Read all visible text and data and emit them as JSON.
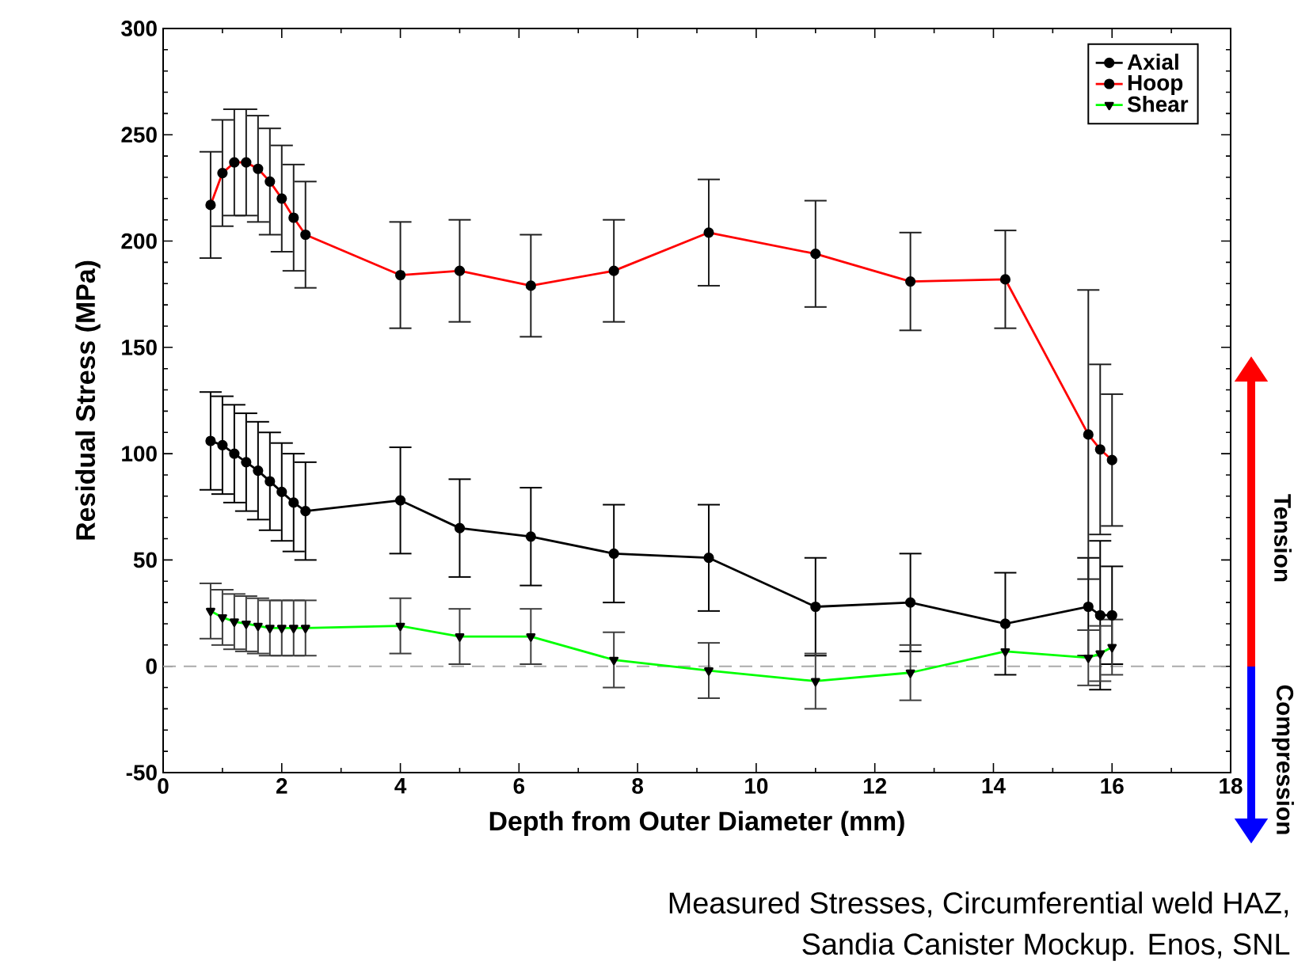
{
  "chart_data": {
    "type": "line",
    "xlabel": "Depth from Outer Diameter (mm)",
    "ylabel": "Residual Stress (MPa)",
    "xlim": [
      0,
      18
    ],
    "xticks": [
      0,
      2,
      4,
      6,
      8,
      10,
      12,
      14,
      16,
      18
    ],
    "ylim": [
      -50,
      300
    ],
    "yticks": [
      -50,
      0,
      50,
      100,
      150,
      200,
      250,
      300
    ],
    "legend": "top right",
    "grid": false,
    "x": [
      0.8,
      1.0,
      1.2,
      1.4,
      1.6,
      1.8,
      2.0,
      2.2,
      2.4,
      4,
      5,
      6.2,
      7.6,
      9.2,
      11,
      12.6,
      14.2,
      15.6,
      15.8,
      16.0
    ],
    "series": [
      {
        "name": "Axial",
        "color": "#000000",
        "marker": "circle",
        "line_style": "solid",
        "values": [
          106,
          104,
          100,
          96,
          92,
          87,
          82,
          77,
          73,
          78,
          65,
          61,
          53,
          51,
          28,
          30,
          20,
          28,
          24,
          24
        ],
        "errors": [
          23,
          23,
          23,
          23,
          23,
          23,
          23,
          23,
          23,
          25,
          23,
          23,
          23,
          25,
          23,
          23,
          24,
          23,
          35,
          23
        ]
      },
      {
        "name": "Hoop",
        "color": "#ff0000",
        "marker": "circle",
        "line_style": "solid",
        "values": [
          217,
          232,
          237,
          237,
          234,
          228,
          220,
          211,
          203,
          184,
          186,
          179,
          186,
          204,
          194,
          181,
          182,
          109,
          102,
          97
        ],
        "errors": [
          25,
          25,
          25,
          25,
          25,
          25,
          25,
          25,
          25,
          25,
          24,
          24,
          24,
          25,
          25,
          23,
          23,
          68,
          40,
          31
        ]
      },
      {
        "name": "Shear",
        "color": "#00ff00",
        "marker": "triangle",
        "line_style": "solid",
        "values": [
          26,
          23,
          21,
          20,
          19,
          18,
          18,
          18,
          18,
          19,
          14,
          14,
          3,
          -2,
          -7,
          -3,
          7,
          4,
          6,
          9
        ],
        "errors": [
          13,
          13,
          13,
          13,
          13,
          13,
          13,
          13,
          13,
          13,
          13,
          13,
          13,
          13,
          13,
          13,
          null,
          13,
          13,
          13
        ]
      }
    ],
    "ref_lines": [
      {
        "axis": "y",
        "value": 0,
        "label": null,
        "color": "#aaaaaa",
        "line_style": "dashed"
      }
    ],
    "annotations": [
      "Tension",
      "Compression",
      "Measured Stresses, Circumferential weld HAZ,",
      "Sandia Canister Mockup. Enos, SNL"
    ]
  }
}
